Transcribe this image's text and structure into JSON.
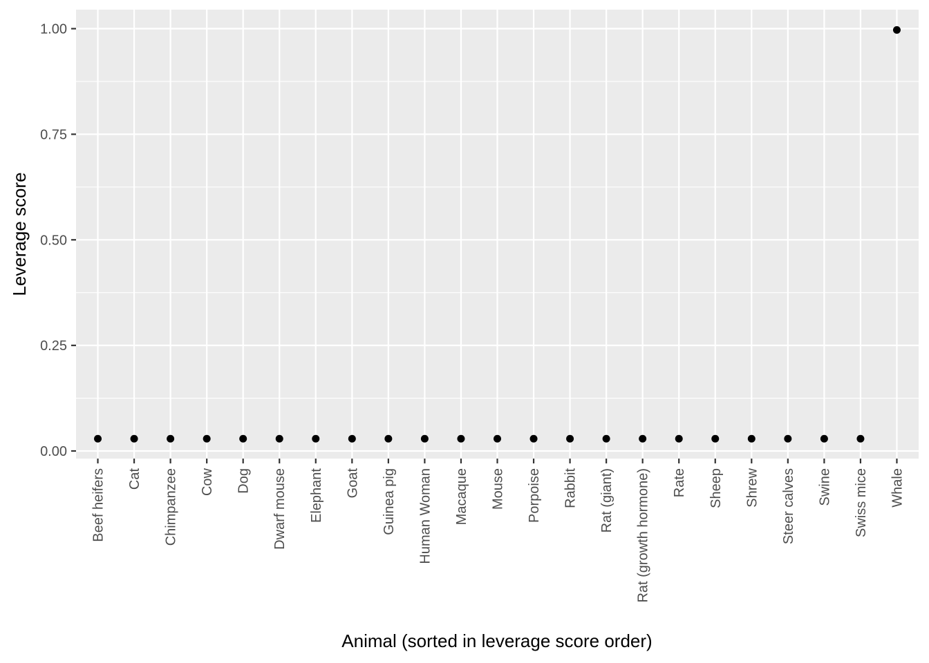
{
  "chart_data": {
    "type": "scatter",
    "title": "",
    "xlabel": "Animal (sorted in leverage score order)",
    "ylabel": "Leverage score",
    "ylim": [
      -0.018,
      1.045
    ],
    "y_ticks": [
      0.0,
      0.25,
      0.5,
      0.75,
      1.0
    ],
    "y_tick_labels": [
      "0.00",
      "0.25",
      "0.50",
      "0.75",
      "1.00"
    ],
    "grid": true,
    "legend": "none",
    "categories": [
      "Beef heifers",
      "Cat",
      "Chimpanzee",
      "Cow",
      "Dog",
      "Dwarf mouse",
      "Elephant",
      "Goat",
      "Guinea pig",
      "Human Woman",
      "Macaque",
      "Mouse",
      "Porpoise",
      "Rabbit",
      "Rat (giant)",
      "Rat (growth hormone)",
      "Rate",
      "Sheep",
      "Shrew",
      "Steer calves",
      "Swine",
      "Swiss mice",
      "Whale"
    ],
    "values": [
      0.029,
      0.029,
      0.029,
      0.029,
      0.029,
      0.029,
      0.029,
      0.029,
      0.029,
      0.029,
      0.029,
      0.029,
      0.029,
      0.029,
      0.029,
      0.029,
      0.029,
      0.029,
      0.029,
      0.029,
      0.029,
      0.029,
      0.997
    ],
    "colors": {
      "panel": "#ebebeb",
      "grid": "#ffffff",
      "point": "#000000",
      "tick": "#333333",
      "tick_text": "#4d4d4d"
    }
  }
}
